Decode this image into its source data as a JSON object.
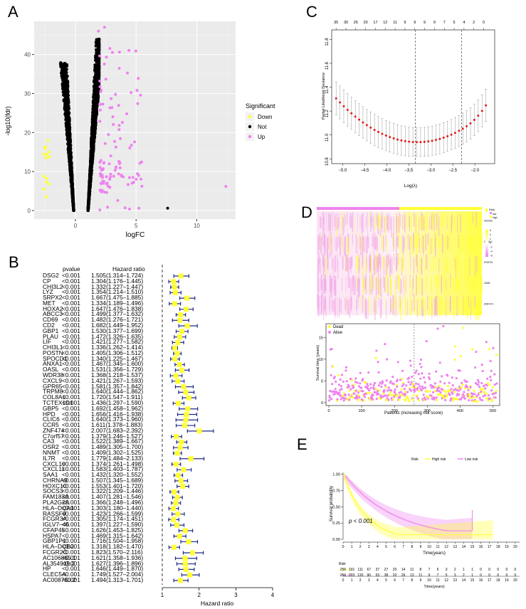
{
  "panels": {
    "A": "A",
    "B": "B",
    "C": "C",
    "D": "D",
    "E": "E"
  },
  "volcano": {
    "xlabel": "logFC",
    "ylabel": "-log10(fdr)",
    "x_ticks": [
      "0",
      "5",
      "10"
    ],
    "y_ticks": [
      "0",
      "10",
      "20",
      "30",
      "40"
    ],
    "legend_title": "Significant",
    "legend": [
      {
        "label": "Down",
        "color": "#ffff33"
      },
      {
        "label": "Not",
        "color": "#000000"
      },
      {
        "label": "Up",
        "color": "#ee82ee"
      }
    ],
    "outliers": [
      {
        "x": 7.6,
        "y": 0.6,
        "color": "#000000"
      },
      {
        "x": 12.4,
        "y": 6.2,
        "color": "#ee82ee"
      },
      {
        "x": 2.4,
        "y": 47,
        "color": "#ee82ee"
      },
      {
        "x": 1.9,
        "y": 46,
        "color": "#ee82ee"
      }
    ]
  },
  "forest": {
    "col_pvalue": "pvalue",
    "col_hr": "Hazard ratio",
    "xlabel": "Hazard ratio",
    "x_ticks": [
      "1",
      "2",
      "3",
      "4"
    ],
    "rows": [
      {
        "gene": "DSG2",
        "p": "<0.001",
        "hrtext": "1.505(1.314–1.724)",
        "hr": 1.505,
        "lo": 1.314,
        "hi": 1.724
      },
      {
        "gene": "CP",
        "p": "<0.001",
        "hrtext": "1.304(1.176–1.445)",
        "hr": 1.304,
        "lo": 1.176,
        "hi": 1.445
      },
      {
        "gene": "CHI3L2",
        "p": "<0.001",
        "hrtext": "1.332(1.227–1.447)",
        "hr": 1.332,
        "lo": 1.227,
        "hi": 1.447
      },
      {
        "gene": "LYZ",
        "p": "<0.001",
        "hrtext": "1.354(1.214–1.510)",
        "hr": 1.354,
        "lo": 1.214,
        "hi": 1.51
      },
      {
        "gene": "SRPX2",
        "p": "<0.001",
        "hrtext": "1.667(1.475–1.885)",
        "hr": 1.667,
        "lo": 1.475,
        "hi": 1.885
      },
      {
        "gene": "MET",
        "p": "<0.001",
        "hrtext": "1.334(1.189–1.496)",
        "hr": 1.334,
        "lo": 1.189,
        "hi": 1.496
      },
      {
        "gene": "HOXA2",
        "p": "<0.001",
        "hrtext": "1.647(1.476–1.838)",
        "hr": 1.647,
        "lo": 1.476,
        "hi": 1.838
      },
      {
        "gene": "ABCC3",
        "p": "<0.001",
        "hrtext": "1.499(1.377–1.632)",
        "hr": 1.499,
        "lo": 1.377,
        "hi": 1.632
      },
      {
        "gene": "CD69",
        "p": "<0.001",
        "hrtext": "1.482(1.276–1.721)",
        "hr": 1.482,
        "lo": 1.276,
        "hi": 1.721
      },
      {
        "gene": "CD2",
        "p": "<0.001",
        "hrtext": "1.682(1.449–1.952)",
        "hr": 1.682,
        "lo": 1.449,
        "hi": 1.952
      },
      {
        "gene": "GBP1",
        "p": "<0.001",
        "hrtext": "1.530(1.377–1.699)",
        "hr": 1.53,
        "lo": 1.377,
        "hi": 1.699
      },
      {
        "gene": "PLAU",
        "p": "<0.001",
        "hrtext": "1.472(1.326–1.635)",
        "hr": 1.472,
        "lo": 1.326,
        "hi": 1.635
      },
      {
        "gene": "LIF",
        "p": "<0.001",
        "hrtext": "1.421(1.277–1.582)",
        "hr": 1.421,
        "lo": 1.277,
        "hi": 1.582
      },
      {
        "gene": "CHI3L1",
        "p": "<0.001",
        "hrtext": "1.336(1.262–1.414)",
        "hr": 1.336,
        "lo": 1.262,
        "hi": 1.414
      },
      {
        "gene": "POSTN",
        "p": "<0.001",
        "hrtext": "1.405(1.306–1.512)",
        "hr": 1.405,
        "lo": 1.306,
        "hi": 1.512
      },
      {
        "gene": "SPOCD1",
        "p": "<0.001",
        "hrtext": "1.340(1.225–1.467)",
        "hr": 1.34,
        "lo": 1.225,
        "hi": 1.467
      },
      {
        "gene": "ANXA1",
        "p": "<0.001",
        "hrtext": "1.467(1.345–1.600)",
        "hr": 1.467,
        "lo": 1.345,
        "hi": 1.6
      },
      {
        "gene": "OASL",
        "p": "<0.001",
        "hrtext": "1.531(1.356–1.729)",
        "hr": 1.531,
        "lo": 1.356,
        "hi": 1.729
      },
      {
        "gene": "WDR38",
        "p": "<0.001",
        "hrtext": "1.368(1.218–1.537)",
        "hr": 1.368,
        "lo": 1.218,
        "hi": 1.537
      },
      {
        "gene": "CXCL9",
        "p": "<0.001",
        "hrtext": "1.421(1.267–1.593)",
        "hr": 1.421,
        "lo": 1.267,
        "hi": 1.593
      },
      {
        "gene": "GPR65",
        "p": "<0.001",
        "hrtext": "1.581(1.357–1.842)",
        "hr": 1.581,
        "lo": 1.357,
        "hi": 1.842
      },
      {
        "gene": "TRPM8",
        "p": "<0.001",
        "hrtext": "1.640(1.444–1.862)",
        "hr": 1.64,
        "lo": 1.444,
        "hi": 1.862
      },
      {
        "gene": "COL8A1",
        "p": "<0.001",
        "hrtext": "1.720(1.547–1.911)",
        "hr": 1.72,
        "lo": 1.547,
        "hi": 1.911
      },
      {
        "gene": "TCTEX1D1",
        "p": "<0.001",
        "hrtext": "1.436(1.297–1.590)",
        "hr": 1.436,
        "lo": 1.297,
        "hi": 1.59
      },
      {
        "gene": "GBP5",
        "p": "<0.001",
        "hrtext": "1.692(1.458–1.962)",
        "hr": 1.692,
        "lo": 1.458,
        "hi": 1.962
      },
      {
        "gene": "HPD",
        "p": "<0.001",
        "hrtext": "1.656(1.416–1.938)",
        "hr": 1.656,
        "lo": 1.416,
        "hi": 1.938
      },
      {
        "gene": "CLIC6",
        "p": "<0.001",
        "hrtext": "1.640(1.373–1.960)",
        "hr": 1.64,
        "lo": 1.373,
        "hi": 1.96
      },
      {
        "gene": "CCR5",
        "p": "<0.001",
        "hrtext": "1.611(1.378–1.883)",
        "hr": 1.611,
        "lo": 1.378,
        "hi": 1.883
      },
      {
        "gene": "ZNF474",
        "p": "<0.001",
        "hrtext": "2.007(1.683–2.392)",
        "hr": 2.007,
        "lo": 1.683,
        "hi": 2.392
      },
      {
        "gene": "C7orf57",
        "p": "<0.001",
        "hrtext": "1.379(1.246–1.527)",
        "hr": 1.379,
        "lo": 1.246,
        "hi": 1.527
      },
      {
        "gene": "CA3",
        "p": "<0.001",
        "hrtext": "1.522(1.389–1.667)",
        "hr": 1.522,
        "lo": 1.389,
        "hi": 1.667
      },
      {
        "gene": "OSR2",
        "p": "<0.001",
        "hrtext": "1.489(1.305–1.700)",
        "hr": 1.489,
        "lo": 1.305,
        "hi": 1.7
      },
      {
        "gene": "NNMT",
        "p": "<0.001",
        "hrtext": "1.409(1.302–1.525)",
        "hr": 1.409,
        "lo": 1.302,
        "hi": 1.525
      },
      {
        "gene": "IL7R",
        "p": "<0.001",
        "hrtext": "1.779(1.484–2.133)",
        "hr": 1.779,
        "lo": 1.484,
        "hi": 2.133
      },
      {
        "gene": "CXCL10",
        "p": "<0.001",
        "hrtext": "1.374(1.261–1.498)",
        "hr": 1.374,
        "lo": 1.261,
        "hi": 1.498
      },
      {
        "gene": "CXCL11",
        "p": "<0.001",
        "hrtext": "1.583(1.403–1.787)",
        "hr": 1.583,
        "lo": 1.403,
        "hi": 1.787
      },
      {
        "gene": "SAA1",
        "p": "<0.001",
        "hrtext": "1.432(1.320–1.552)",
        "hr": 1.432,
        "lo": 1.32,
        "hi": 1.552
      },
      {
        "gene": "CHRNA9",
        "p": "<0.001",
        "hrtext": "1.507(1.345–1.689)",
        "hr": 1.507,
        "lo": 1.345,
        "hi": 1.689
      },
      {
        "gene": "HOXC10",
        "p": "<0.001",
        "hrtext": "1.553(1.401–1.720)",
        "hr": 1.553,
        "lo": 1.401,
        "hi": 1.72
      },
      {
        "gene": "SOCS3",
        "p": "<0.001",
        "hrtext": "1.322(1.209–1.446)",
        "hr": 1.322,
        "lo": 1.209,
        "hi": 1.446
      },
      {
        "gene": "FAM183A",
        "p": "<0.001",
        "hrtext": "1.407(1.281–1.546)",
        "hr": 1.407,
        "lo": 1.281,
        "hi": 1.546
      },
      {
        "gene": "PLA2G2A",
        "p": "<0.001",
        "hrtext": "1.366(1.248–1.496)",
        "hr": 1.366,
        "lo": 1.248,
        "hi": 1.496
      },
      {
        "gene": "HLA–DQA1",
        "p": "<0.001",
        "hrtext": "1.303(1.180–1.440)",
        "hr": 1.303,
        "lo": 1.18,
        "hi": 1.44
      },
      {
        "gene": "RASSF9",
        "p": "<0.001",
        "hrtext": "1.423(1.266–1.599)",
        "hr": 1.423,
        "lo": 1.266,
        "hi": 1.599
      },
      {
        "gene": "FCGR3A",
        "p": "<0.001",
        "hrtext": "1.305(1.174–1.451)",
        "hr": 1.305,
        "lo": 1.174,
        "hi": 1.451
      },
      {
        "gene": "IGLV7–46",
        "p": "<0.001",
        "hrtext": "1.397(1.227–1.590)",
        "hr": 1.397,
        "lo": 1.227,
        "hi": 1.59
      },
      {
        "gene": "CFAP45",
        "p": "<0.001",
        "hrtext": "1.626(1.453–1.825)",
        "hr": 1.626,
        "lo": 1.453,
        "hi": 1.825
      },
      {
        "gene": "HSPA7",
        "p": "<0.001",
        "hrtext": "1.469(1.315–1.642)",
        "hr": 1.469,
        "lo": 1.315,
        "hi": 1.642
      },
      {
        "gene": "GBP1P1",
        "p": "<0.001",
        "hrtext": "1.716(1.504–1.958)",
        "hr": 1.716,
        "lo": 1.504,
        "hi": 1.958
      },
      {
        "gene": "HLA–DQB2",
        "p": "<0.001",
        "hrtext": "1.318(1.182–1.470)",
        "hr": 1.318,
        "lo": 1.182,
        "hi": 1.47
      },
      {
        "gene": "FCGR2C",
        "p": "<0.001",
        "hrtext": "1.823(1.570–2.116)",
        "hr": 1.823,
        "lo": 1.57,
        "hi": 2.116
      },
      {
        "gene": "AC106865.1",
        "p": "<0.001",
        "hrtext": "1.621(1.358–1.936)",
        "hr": 1.621,
        "lo": 1.358,
        "hi": 1.936
      },
      {
        "gene": "AL354919.2",
        "p": "<0.001",
        "hrtext": "1.627(1.396–1.896)",
        "hr": 1.627,
        "lo": 1.396,
        "hi": 1.896
      },
      {
        "gene": "HP",
        "p": "<0.001",
        "hrtext": "1.646(1.449–1.870)",
        "hr": 1.646,
        "lo": 1.449,
        "hi": 1.87
      },
      {
        "gene": "CLEC5A",
        "p": "<0.001",
        "hrtext": "1.749(1.527–2.004)",
        "hr": 1.749,
        "lo": 1.527,
        "hi": 2.004
      },
      {
        "gene": "AC008760.2",
        "p": "<0.001",
        "hrtext": "1.494(1.313–1.701)",
        "hr": 1.494,
        "lo": 1.313,
        "hi": 1.701
      }
    ]
  },
  "lasso": {
    "xlabel": "Log(λ)",
    "ylabel": "Partial Likelihood Deviance",
    "x_ticks": [
      "−5.0",
      "−4.5",
      "−4.0",
      "−3.5",
      "−3.0",
      "−2.5",
      "−2.0"
    ],
    "y_ticks": [
      "10.8",
      "11.0",
      "11.2",
      "11.4",
      "11.6",
      "11.8"
    ],
    "top_ticks": [
      "35",
      "30",
      "26",
      "20",
      "17",
      "12",
      "11",
      "9",
      "9",
      "9",
      "9",
      "7",
      "5",
      "4",
      "2",
      "0"
    ],
    "lambda_min": -3.35,
    "lambda_1se": -2.3
  },
  "heatmap": {
    "genes": [
      "HOXA2",
      "CHI3L1",
      "POSTN",
      "OASL",
      "ZNF474"
    ],
    "legend_title": "Risk",
    "risk_labels": [
      "low",
      "high"
    ],
    "scale_labels": [
      "6",
      "4",
      "2",
      "0",
      "−2",
      "−4",
      "−6"
    ],
    "colors": {
      "low": "#ee82ee",
      "high": "#ffff33"
    }
  },
  "risk_scatter": {
    "xlabel": "Patients (increasing risk score)",
    "ylabel": "Survival time (years)",
    "x_ticks": [
      "0",
      "100",
      "200",
      "300",
      "400",
      "500"
    ],
    "y_ticks": [
      "0",
      "5",
      "10",
      "15"
    ],
    "legend": [
      {
        "label": "Dead",
        "color": "#ffff33"
      },
      {
        "label": "Alive",
        "color": "#ee82ee"
      }
    ],
    "cutoff": 260
  },
  "km": {
    "legend_title": "Risk",
    "legend": [
      {
        "label": "High risk",
        "color": "#ffff33"
      },
      {
        "label": "Low risk",
        "color": "#ee82ee"
      }
    ],
    "ylabel": "Survival probability",
    "xlabel": "Time(years)",
    "y_ticks": [
      "0.00",
      "0.25",
      "0.50",
      "0.75",
      "1.00"
    ],
    "x_ticks": [
      "0",
      "1",
      "2",
      "3",
      "4",
      "5",
      "6",
      "7",
      "8",
      "9",
      "10",
      "11",
      "12",
      "13",
      "14",
      "15",
      "16",
      "17",
      "18",
      "19",
      "20"
    ],
    "pvalue": "p < 0.001",
    "risk_table_title": "Risk",
    "risk_rows": [
      {
        "label": "High risk",
        "color": "#ffff33",
        "counts": [
          "256",
          "191",
          "111",
          "67",
          "37",
          "27",
          "20",
          "14",
          "11",
          "8",
          "7",
          "5",
          "3",
          "2",
          "1",
          "1",
          "0",
          "0",
          "0",
          "0",
          "0"
        ]
      },
      {
        "label": "Low risk",
        "color": "#ee82ee",
        "counts": [
          "256",
          "203",
          "130",
          "90",
          "53",
          "38",
          "32",
          "26",
          "13",
          "11",
          "9",
          "7",
          "5",
          "3",
          "2",
          "1",
          "0",
          "0",
          "0",
          "0",
          "0"
        ]
      }
    ]
  }
}
